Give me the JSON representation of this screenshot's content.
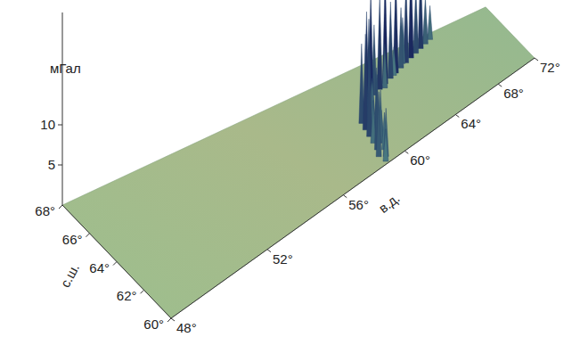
{
  "chart_data": {
    "type": "surface3d",
    "z_label": "мГал",
    "x_label": "в.д.",
    "y_label": "с.ш.",
    "xlim": [
      48,
      72
    ],
    "xticks": [
      {
        "value": 48,
        "label": "48°"
      },
      {
        "value": 52,
        "label": "52°"
      },
      {
        "value": 56,
        "label": "56°"
      },
      {
        "value": 60,
        "label": "60°"
      },
      {
        "value": 64,
        "label": "64°"
      },
      {
        "value": 68,
        "label": "68°"
      },
      {
        "value": 72,
        "label": "72°"
      }
    ],
    "ylim": [
      60,
      68
    ],
    "yticks": [
      {
        "value": 60,
        "label": "60°"
      },
      {
        "value": 62,
        "label": "62°"
      },
      {
        "value": 64,
        "label": "64°"
      },
      {
        "value": 66,
        "label": "66°"
      },
      {
        "value": 68,
        "label": "68°"
      }
    ],
    "zlim": [
      0,
      24
    ],
    "zticks": [
      5,
      10
    ],
    "points": {
      "x": [
        58.8,
        59.0,
        58.7,
        59.2,
        58.9,
        59.3,
        59.0,
        59.4,
        59.1,
        59.5,
        59.2,
        59.6,
        59.3,
        59.8,
        60.0,
        60.3,
        60.6,
        61.0,
        61.5,
        62.0,
        62.5,
        63.0,
        63.5,
        64.0,
        64.5,
        65.0,
        65.5,
        66.0,
        66.5,
        60.1,
        59.6,
        61.8,
        63.8,
        62.8
      ],
      "y": [
        60.2,
        60.5,
        60.8,
        61.0,
        61.3,
        61.6,
        61.9,
        62.2,
        62.5,
        62.8,
        63.1,
        63.4,
        63.7,
        64.0,
        64.3,
        64.6,
        64.9,
        65.2,
        65.4,
        65.6,
        65.8,
        66.0,
        66.2,
        66.4,
        66.6,
        66.8,
        67.0,
        67.2,
        67.4,
        63.9,
        62.0,
        65.3,
        66.5,
        65.9
      ],
      "z": [
        6,
        9,
        12,
        7,
        14,
        10,
        8,
        13,
        16,
        9,
        18,
        11,
        15,
        20,
        12,
        17,
        22,
        14,
        19,
        23,
        16,
        21,
        13,
        18,
        22,
        15,
        19,
        11,
        8,
        7,
        5,
        9,
        10,
        6
      ]
    }
  }
}
